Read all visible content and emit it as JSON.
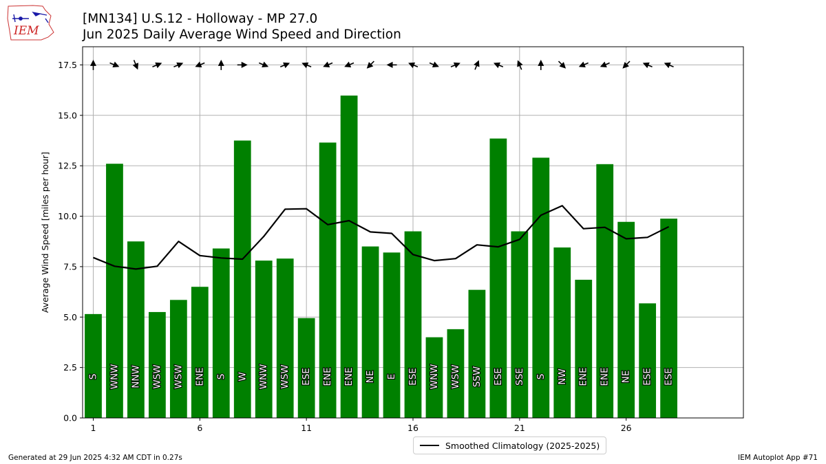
{
  "header": {
    "title": "[MN134] U.S.12 - Holloway - MP 27.0",
    "subtitle": "Jun 2025 Daily Average Wind Speed and Direction",
    "logo_text": "IEM"
  },
  "footer": {
    "generated": "Generated at 29 Jun 2025 4:32 AM CDT in 0.27s",
    "app": "IEM Autoplot App #71"
  },
  "colors": {
    "bar": "#008000",
    "line": "#000000",
    "grid": "#b0b0b0",
    "logo": "#cc2222"
  },
  "chart_data": {
    "type": "bar",
    "title": "[MN134] U.S.12 - Holloway - MP 27.0",
    "subtitle": "Jun 2025 Daily Average Wind Speed and Direction",
    "xlabel": "",
    "ylabel": "Average Wind Speed [miles per hour]",
    "xlim": [
      0.5,
      31.5
    ],
    "ylim": [
      0,
      18.4
    ],
    "xticks": [
      1,
      6,
      11,
      16,
      21,
      26
    ],
    "yticks": [
      0.0,
      2.5,
      5.0,
      7.5,
      10.0,
      12.5,
      15.0,
      17.5
    ],
    "grid": true,
    "legend_position": "bottom-center",
    "days": [
      1,
      2,
      3,
      4,
      5,
      6,
      7,
      8,
      9,
      10,
      11,
      12,
      13,
      14,
      15,
      16,
      17,
      18,
      19,
      20,
      21,
      22,
      23,
      24,
      25,
      26,
      27,
      28
    ],
    "speed": [
      5.15,
      12.6,
      8.75,
      5.25,
      5.85,
      6.5,
      8.4,
      13.75,
      7.8,
      7.9,
      4.95,
      13.65,
      15.98,
      8.5,
      8.2,
      9.25,
      4.0,
      4.4,
      6.35,
      13.85,
      9.25,
      12.9,
      8.45,
      6.85,
      12.58,
      9.72,
      5.68,
      9.88
    ],
    "direction_labels": [
      "S",
      "WNW",
      "NNW",
      "WSW",
      "WSW",
      "ENE",
      "S",
      "W",
      "WNW",
      "WSW",
      "ESE",
      "ENE",
      "ENE",
      "NE",
      "E",
      "ESE",
      "WNW",
      "WSW",
      "SSW",
      "ESE",
      "SSE",
      "S",
      "NW",
      "ENE",
      "ENE",
      "NE",
      "ESE",
      "ESE"
    ],
    "smoothed_climatology": {
      "name": "Smoothed Climatology (2025-2025)",
      "values": [
        7.95,
        7.52,
        7.38,
        7.52,
        8.75,
        8.05,
        7.93,
        7.87,
        9.0,
        10.35,
        10.37,
        9.58,
        9.78,
        9.22,
        9.15,
        8.1,
        7.8,
        7.9,
        8.58,
        8.48,
        8.85,
        10.05,
        10.52,
        9.38,
        9.45,
        8.88,
        8.95,
        9.48
      ]
    }
  }
}
